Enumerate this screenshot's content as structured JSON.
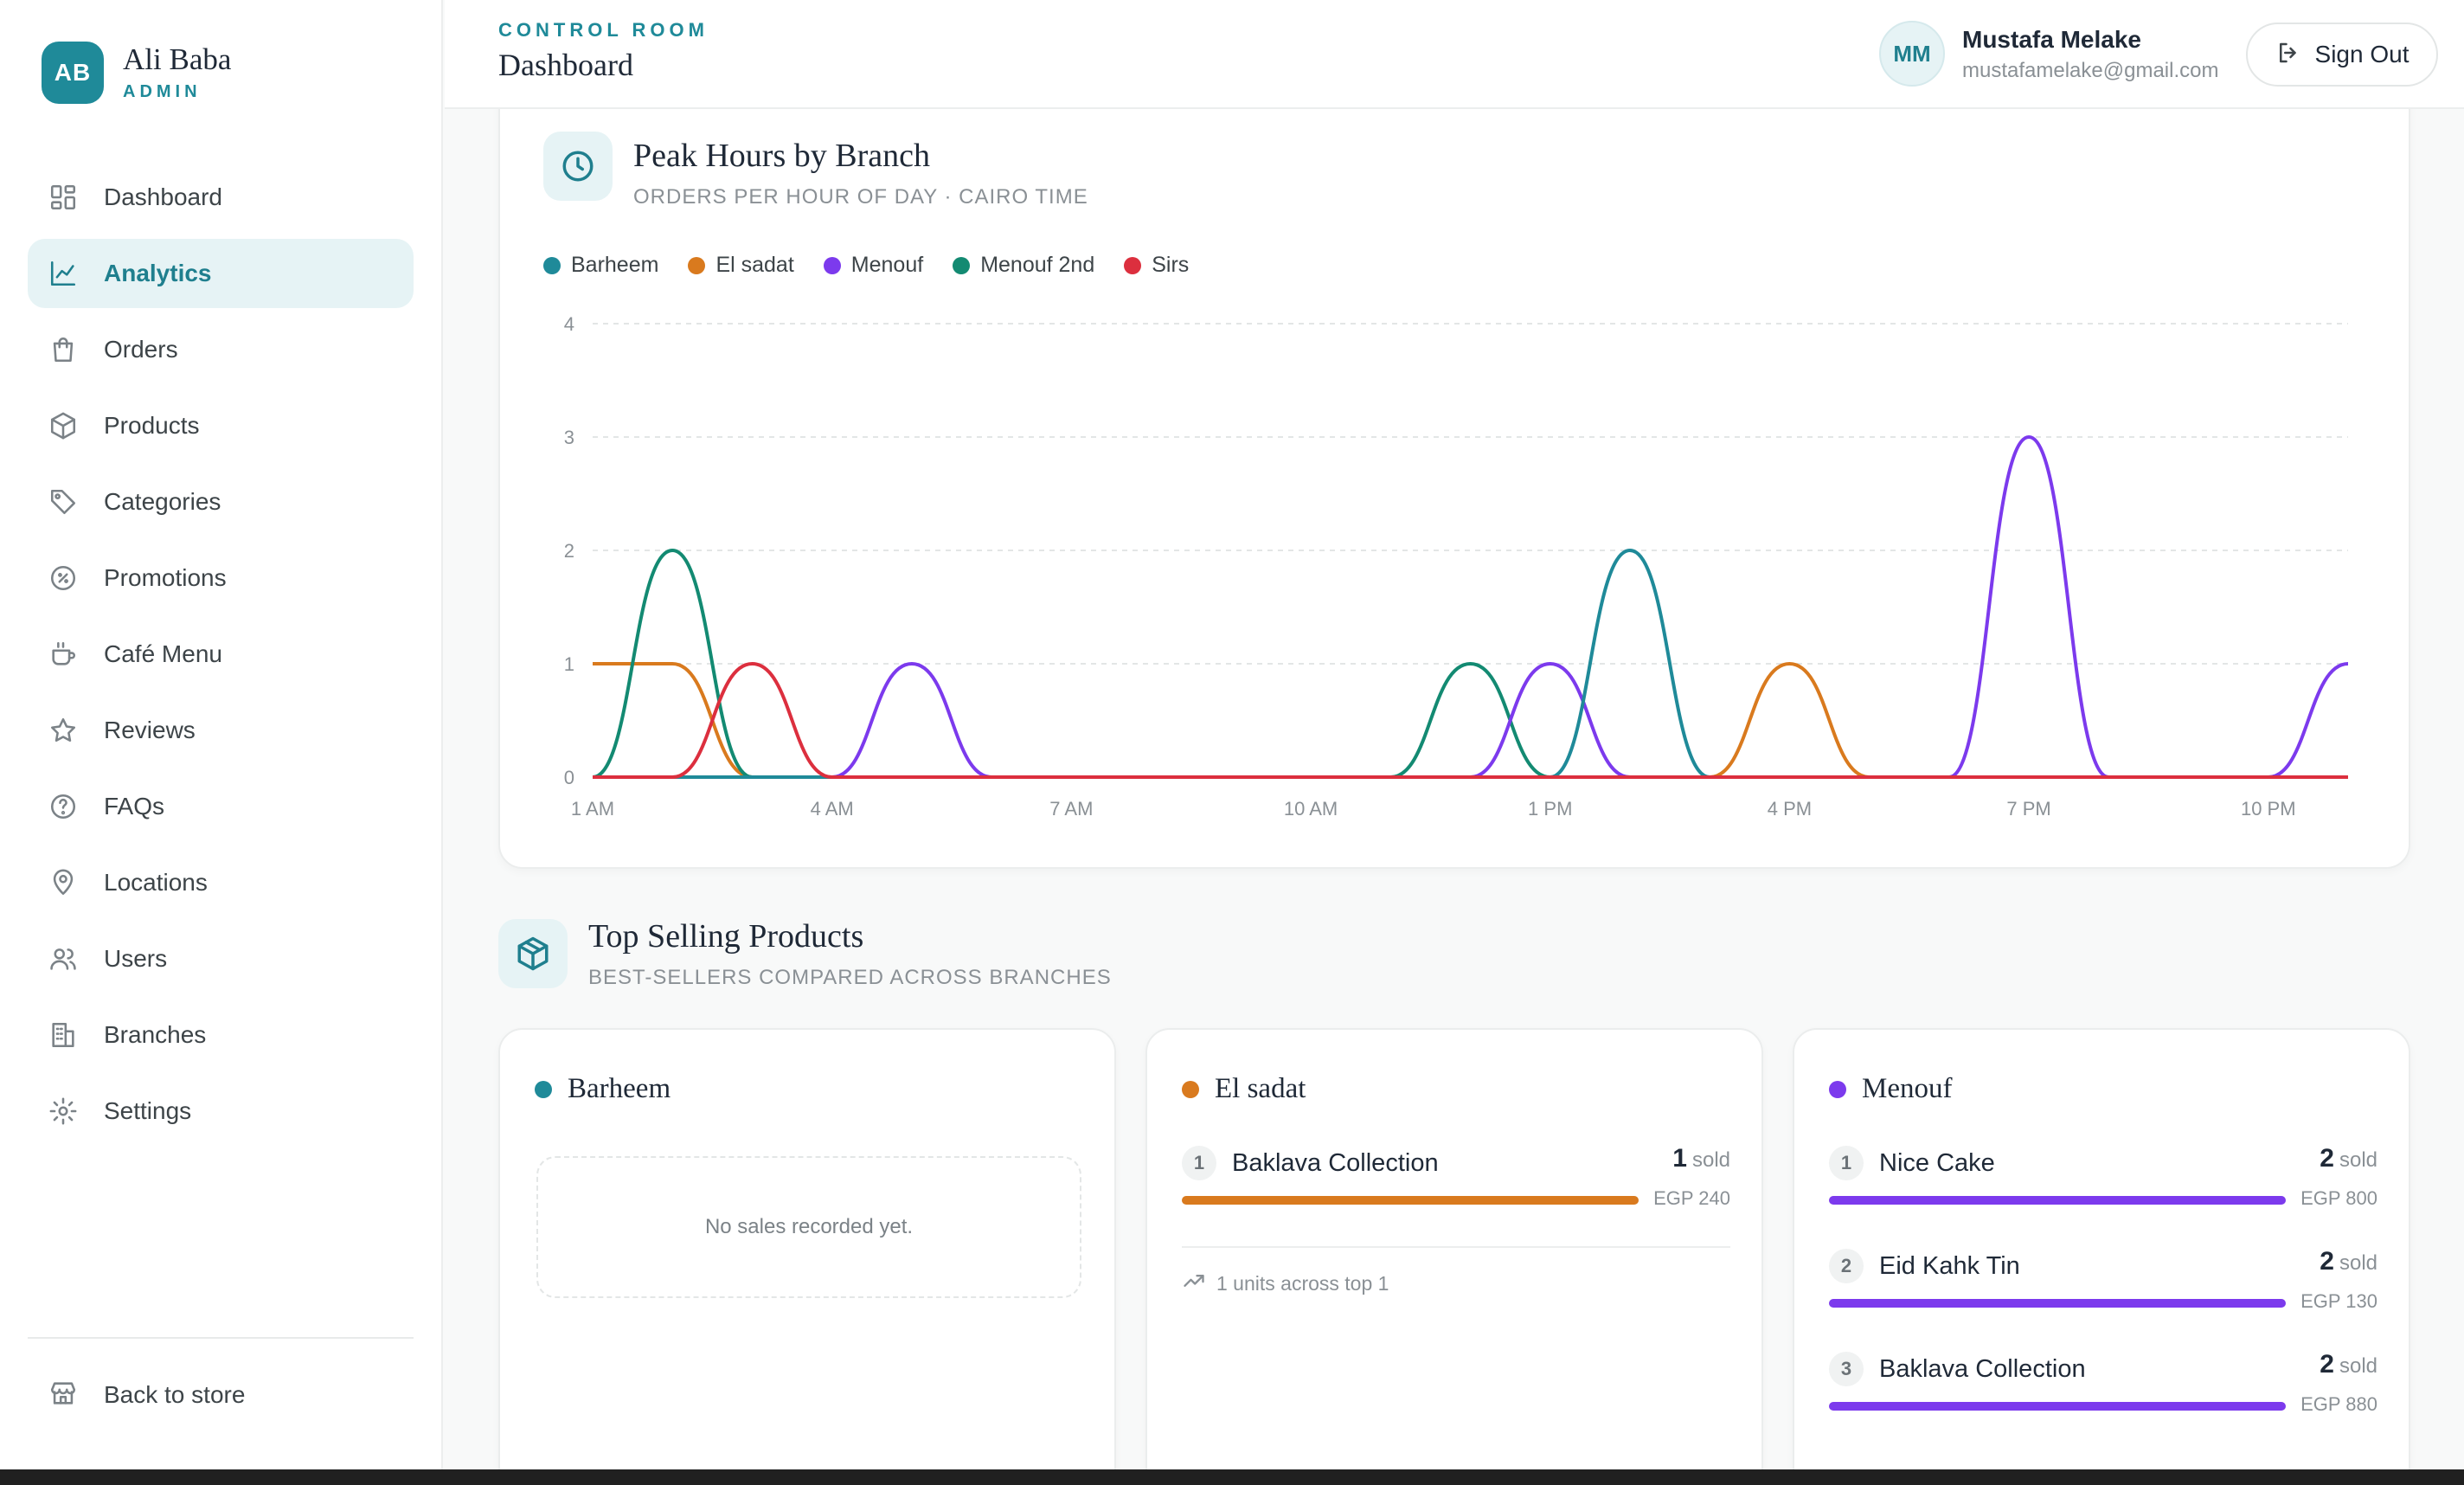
{
  "brand": {
    "initials": "AB",
    "name": "Ali Baba",
    "role": "ADMIN"
  },
  "sidebar": {
    "items": [
      {
        "label": "Dashboard",
        "icon": "grid-icon",
        "active": false
      },
      {
        "label": "Analytics",
        "icon": "chart-line-icon",
        "active": true
      },
      {
        "label": "Orders",
        "icon": "shopping-bag-icon",
        "active": false
      },
      {
        "label": "Products",
        "icon": "package-icon",
        "active": false
      },
      {
        "label": "Categories",
        "icon": "tag-icon",
        "active": false
      },
      {
        "label": "Promotions",
        "icon": "percent-badge-icon",
        "active": false
      },
      {
        "label": "Café Menu",
        "icon": "coffee-icon",
        "active": false
      },
      {
        "label": "Reviews",
        "icon": "star-icon",
        "active": false
      },
      {
        "label": "FAQs",
        "icon": "help-circle-icon",
        "active": false
      },
      {
        "label": "Locations",
        "icon": "map-pin-icon",
        "active": false
      },
      {
        "label": "Users",
        "icon": "users-icon",
        "active": false
      },
      {
        "label": "Branches",
        "icon": "building-icon",
        "active": false
      },
      {
        "label": "Settings",
        "icon": "gear-icon",
        "active": false
      }
    ],
    "back_label": "Back to store"
  },
  "header": {
    "crumb": "CONTROL ROOM",
    "title": "Dashboard",
    "user_initials": "MM",
    "user_name": "Mustafa Melake",
    "user_email": "mustafamelake@gmail.com",
    "signout_label": "Sign Out"
  },
  "peak": {
    "title": "Peak Hours by Branch",
    "subtitle": "ORDERS PER HOUR OF DAY · CAIRO TIME"
  },
  "chart_data": {
    "type": "line",
    "title": "Peak Hours by Branch",
    "subtitle": "ORDERS PER HOUR OF DAY · CAIRO TIME",
    "x": [
      1,
      2,
      3,
      4,
      5,
      6,
      7,
      8,
      9,
      10,
      11,
      12,
      13,
      14,
      15,
      16,
      17,
      18,
      19,
      20,
      21,
      22,
      23
    ],
    "x_tick_values": [
      1,
      4,
      7,
      10,
      13,
      16,
      19,
      22
    ],
    "x_tick_labels": [
      "1 AM",
      "4 AM",
      "7 AM",
      "10 AM",
      "1 PM",
      "4 PM",
      "7 PM",
      "10 PM"
    ],
    "y_ticks": [
      0,
      1,
      2,
      3,
      4
    ],
    "ylim": [
      0,
      4
    ],
    "grid": true,
    "legend": "top-left",
    "series": [
      {
        "name": "Barheem",
        "color": "#1f8a99",
        "values": [
          0,
          0,
          0,
          0,
          0,
          0,
          0,
          0,
          0,
          0,
          0,
          0,
          0,
          2,
          0,
          0,
          0,
          0,
          0,
          0,
          0,
          0,
          0
        ]
      },
      {
        "name": "El sadat",
        "color": "#d97a1e",
        "values": [
          1,
          1,
          0,
          0,
          0,
          0,
          0,
          0,
          0,
          0,
          0,
          0,
          0,
          0,
          0,
          1,
          0,
          0,
          0,
          0,
          0,
          0,
          0
        ]
      },
      {
        "name": "Menouf",
        "color": "#7c3aed",
        "values": [
          0,
          0,
          0,
          0,
          1,
          0,
          0,
          0,
          0,
          0,
          0,
          0,
          1,
          0,
          0,
          0,
          0,
          0,
          3,
          0,
          0,
          0,
          1
        ]
      },
      {
        "name": "Menouf 2nd",
        "color": "#138a72",
        "values": [
          0,
          2,
          0,
          0,
          0,
          0,
          0,
          0,
          0,
          0,
          0,
          1,
          0,
          0,
          0,
          0,
          0,
          0,
          0,
          0,
          0,
          0,
          0
        ]
      },
      {
        "name": "Sirs",
        "color": "#dc2f3e",
        "values": [
          0,
          0,
          1,
          0,
          0,
          0,
          0,
          0,
          0,
          0,
          0,
          0,
          0,
          0,
          0,
          0,
          0,
          0,
          0,
          0,
          0,
          0,
          0
        ]
      }
    ]
  },
  "top": {
    "title": "Top Selling Products",
    "subtitle": "BEST-SELLERS COMPARED ACROSS BRANCHES",
    "branches": [
      {
        "name": "Barheem",
        "color": "#1f8a99",
        "empty_text": "No sales recorded yet.",
        "products": []
      },
      {
        "name": "El sadat",
        "color": "#d97a1e",
        "products": [
          {
            "rank": "1",
            "name": "Baklava Collection",
            "sold": "1",
            "sold_unit": "sold",
            "price": "EGP 240",
            "share": 1.0
          }
        ],
        "summary": "1 units across top 1"
      },
      {
        "name": "Menouf",
        "color": "#7c3aed",
        "products": [
          {
            "rank": "1",
            "name": "Nice Cake",
            "sold": "2",
            "sold_unit": "sold",
            "price": "EGP 800",
            "share": 1.0
          },
          {
            "rank": "2",
            "name": "Eid Kahk Tin",
            "sold": "2",
            "sold_unit": "sold",
            "price": "EGP 130",
            "share": 1.0
          },
          {
            "rank": "3",
            "name": "Baklava Collection",
            "sold": "2",
            "sold_unit": "sold",
            "price": "EGP 880",
            "share": 1.0
          }
        ]
      }
    ]
  }
}
